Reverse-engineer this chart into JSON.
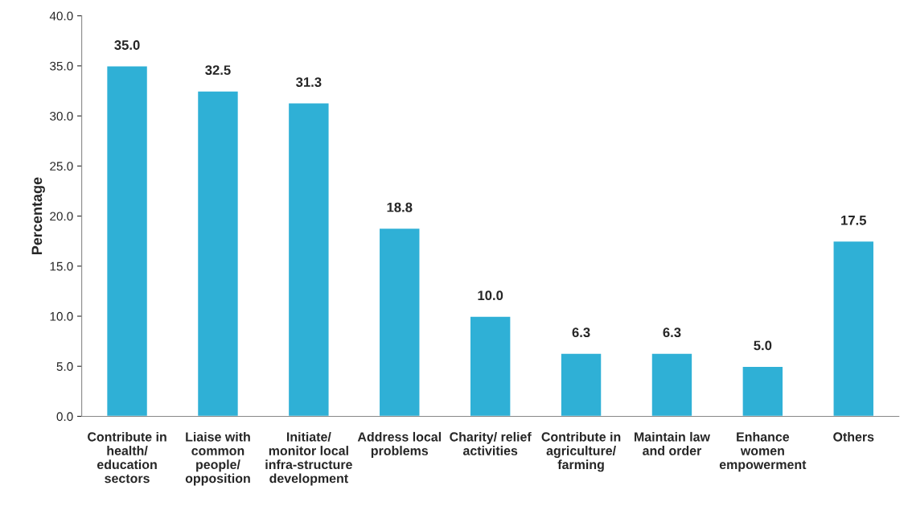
{
  "chart_data": {
    "type": "bar",
    "ylabel": "Percentage",
    "categories": [
      "Contribute in\nhealth/\neducation\nsectors",
      "Liaise with\ncommon\npeople/\nopposition",
      "Initiate/\nmonitor local\ninfra-structure\ndevelopment",
      "Address local\nproblems",
      "Charity/ relief\nactivities",
      "Contribute in\nagriculture/\nfarming",
      "Maintain law\nand order",
      "Enhance\nwomen\nempowerment",
      "Others"
    ],
    "values": [
      35.0,
      32.5,
      31.3,
      18.8,
      10.0,
      6.3,
      6.3,
      5.0,
      17.5
    ],
    "value_labels": [
      "35.0",
      "32.5",
      "31.3",
      "18.8",
      "10.0",
      "6.3",
      "6.3",
      "5.0",
      "17.5"
    ],
    "color": "#2fb0d6",
    "ylim": [
      0,
      40
    ],
    "yticks": [
      {
        "value": 0,
        "label": "0.0"
      },
      {
        "value": 5,
        "label": "5.0"
      },
      {
        "value": 10,
        "label": "10.0"
      },
      {
        "value": 15,
        "label": "15.0"
      },
      {
        "value": 20,
        "label": "20.0"
      },
      {
        "value": 25,
        "label": "25.0"
      },
      {
        "value": 30,
        "label": "30.0"
      },
      {
        "value": 35,
        "label": "35.0"
      },
      {
        "value": 40,
        "label": "40.0"
      }
    ],
    "grid": false
  }
}
